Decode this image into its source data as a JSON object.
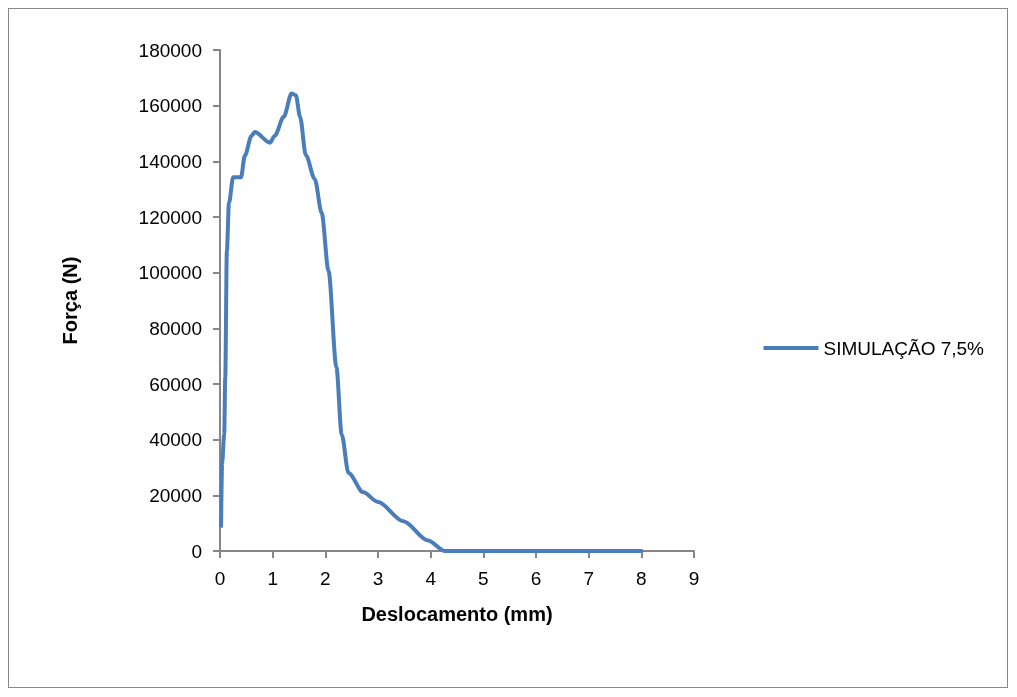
{
  "chart_data": {
    "type": "line",
    "xlabel": "Deslocamento (mm)",
    "ylabel": "Força (N)",
    "xlim": [
      0,
      9
    ],
    "xticks": [
      0,
      1,
      2,
      3,
      4,
      5,
      6,
      7,
      8,
      9
    ],
    "ylim": [
      0,
      180000
    ],
    "yticks": [
      0,
      20000,
      40000,
      60000,
      80000,
      100000,
      120000,
      140000,
      160000,
      180000
    ],
    "grid": false,
    "legend": "right",
    "marker": "none",
    "line_style": "solid",
    "series": [
      {
        "name": "SIMULAÇÃO 7,5%",
        "color": "#4a7ebb",
        "x": [
          0.02,
          0.04,
          0.08,
          0.1,
          0.13,
          0.17,
          0.25,
          0.4,
          0.47,
          0.6,
          0.66,
          0.95,
          1.04,
          1.21,
          1.36,
          1.44,
          1.52,
          1.63,
          1.8,
          1.93,
          2.06,
          2.21,
          2.31,
          2.44,
          2.72,
          3.0,
          3.48,
          3.95,
          4.27,
          4.55,
          8.0
        ],
        "values": [
          9000,
          31500,
          42000,
          62600,
          107600,
          125000,
          134300,
          134300,
          142000,
          149200,
          150500,
          146700,
          149200,
          156000,
          164400,
          163700,
          156000,
          142200,
          133600,
          121500,
          100700,
          66100,
          41900,
          28000,
          21100,
          17600,
          10700,
          3800,
          0,
          0,
          0
        ]
      }
    ]
  }
}
